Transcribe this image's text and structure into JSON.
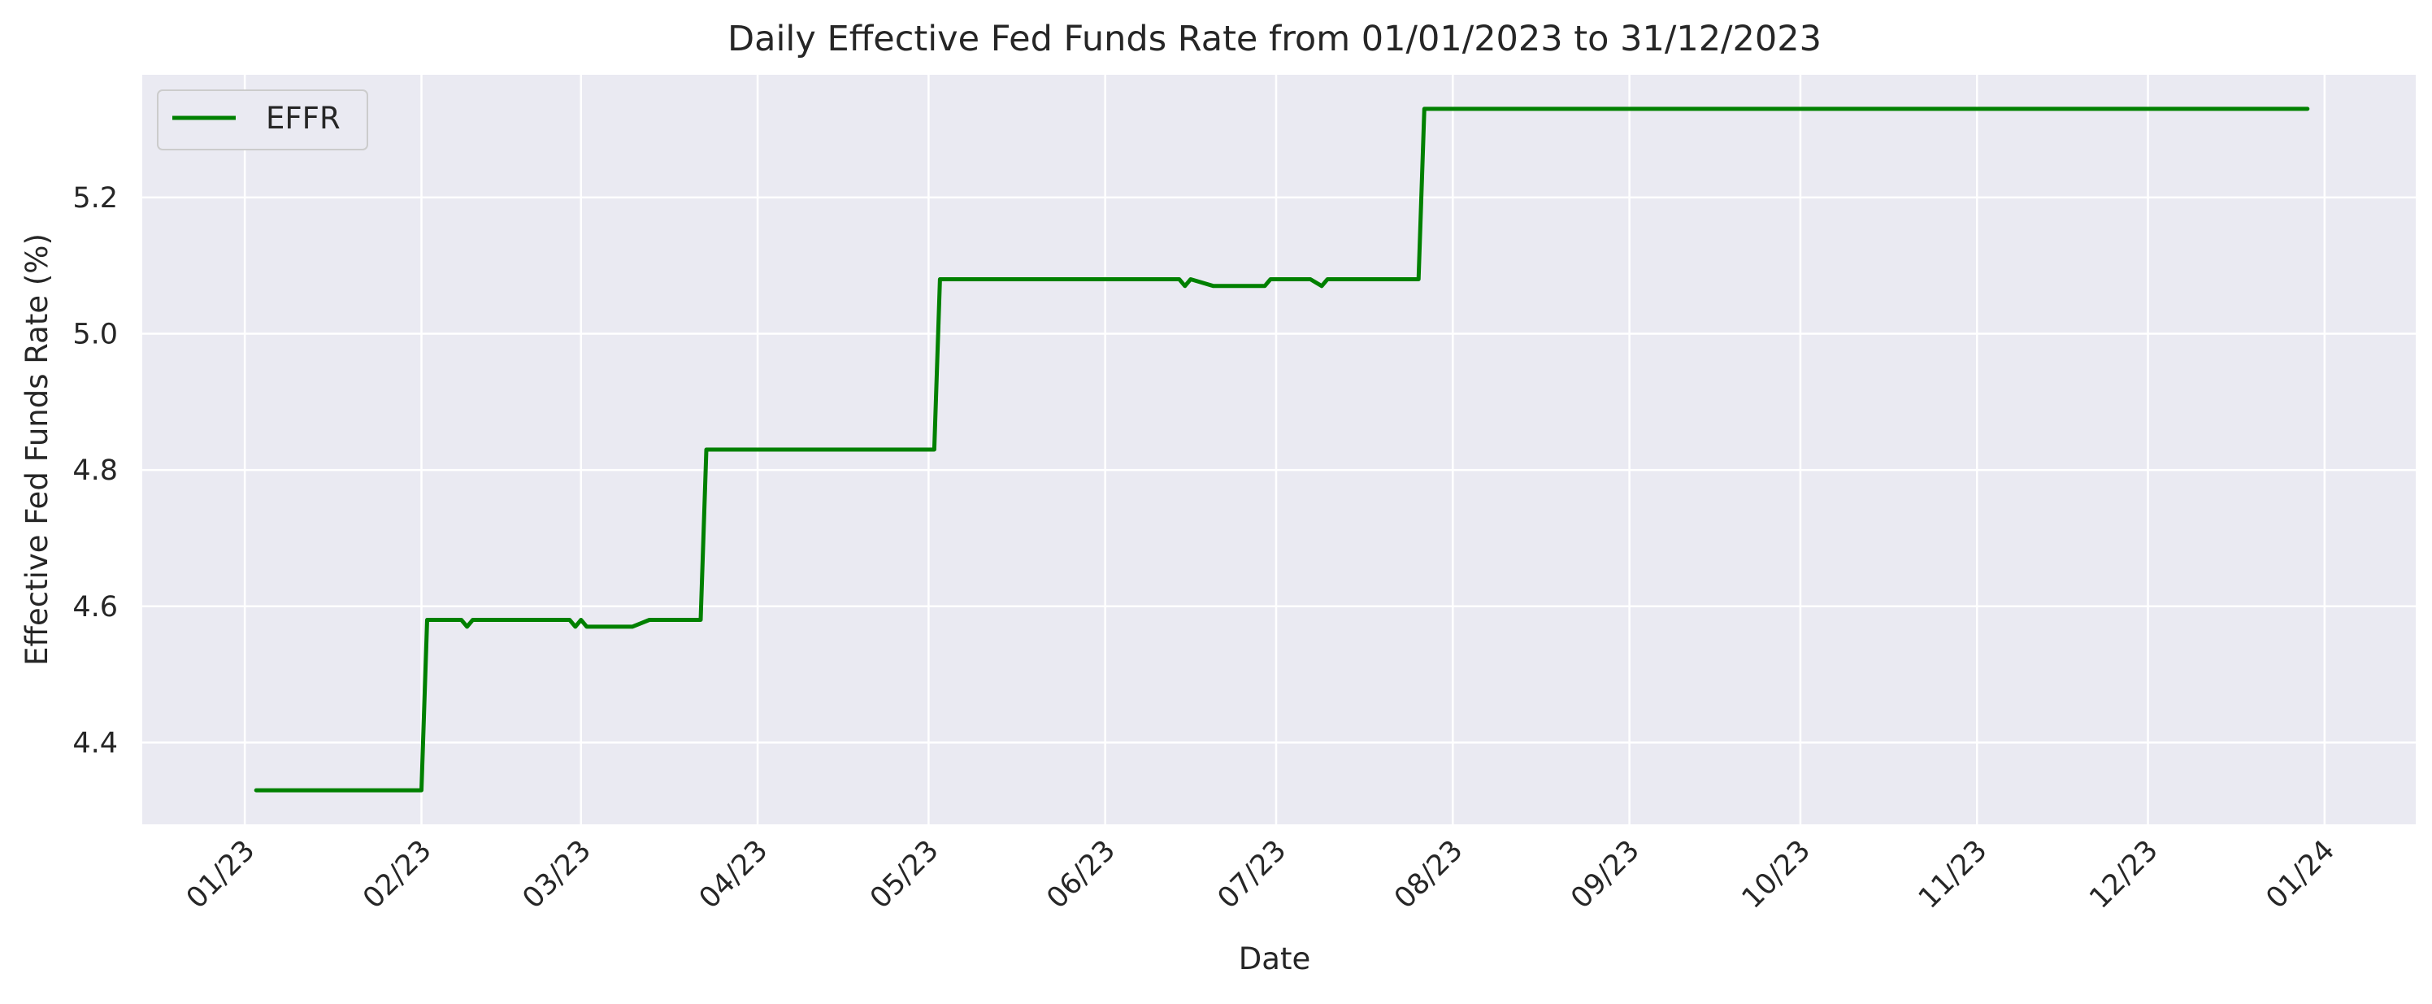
{
  "chart_data": {
    "type": "line",
    "title": "Daily Effective Fed Funds Rate from 01/01/2023 to 31/12/2023",
    "xlabel": "Date",
    "ylabel": "Effective Fed Funds Rate (%)",
    "xlim": [
      "2022-12-14",
      "2024-01-17"
    ],
    "ylim": [
      4.28,
      5.38
    ],
    "x_ticks": [
      "2023-01-01",
      "2023-02-01",
      "2023-03-01",
      "2023-04-01",
      "2023-05-01",
      "2023-06-01",
      "2023-07-01",
      "2023-08-01",
      "2023-09-01",
      "2023-10-01",
      "2023-11-01",
      "2023-12-01",
      "2024-01-01"
    ],
    "x_tick_labels": [
      "01/23",
      "02/23",
      "03/23",
      "04/23",
      "05/23",
      "06/23",
      "07/23",
      "08/23",
      "09/23",
      "10/23",
      "11/23",
      "12/23",
      "01/24"
    ],
    "y_ticks": [
      4.4,
      4.6,
      4.8,
      5.0,
      5.2
    ],
    "y_tick_labels": [
      "4.4",
      "4.6",
      "4.8",
      "5.0",
      "5.2"
    ],
    "grid": true,
    "legend_position": "top-left",
    "series": [
      {
        "name": "EFFR",
        "color": "#008000",
        "x": [
          "2023-01-03",
          "2023-02-01",
          "2023-02-02",
          "2023-02-08",
          "2023-02-09",
          "2023-02-10",
          "2023-02-27",
          "2023-02-28",
          "2023-03-01",
          "2023-03-02",
          "2023-03-10",
          "2023-03-13",
          "2023-03-22",
          "2023-03-23",
          "2023-05-02",
          "2023-05-03",
          "2023-06-14",
          "2023-06-15",
          "2023-06-16",
          "2023-06-20",
          "2023-06-29",
          "2023-06-30",
          "2023-07-07",
          "2023-07-09",
          "2023-07-10",
          "2023-07-26",
          "2023-07-27",
          "2023-12-29"
        ],
        "y": [
          4.33,
          4.33,
          4.58,
          4.58,
          4.57,
          4.58,
          4.58,
          4.57,
          4.58,
          4.57,
          4.57,
          4.58,
          4.58,
          4.83,
          4.83,
          5.08,
          5.08,
          5.07,
          5.08,
          5.07,
          5.07,
          5.08,
          5.08,
          5.07,
          5.08,
          5.08,
          5.33,
          5.33
        ]
      }
    ]
  }
}
